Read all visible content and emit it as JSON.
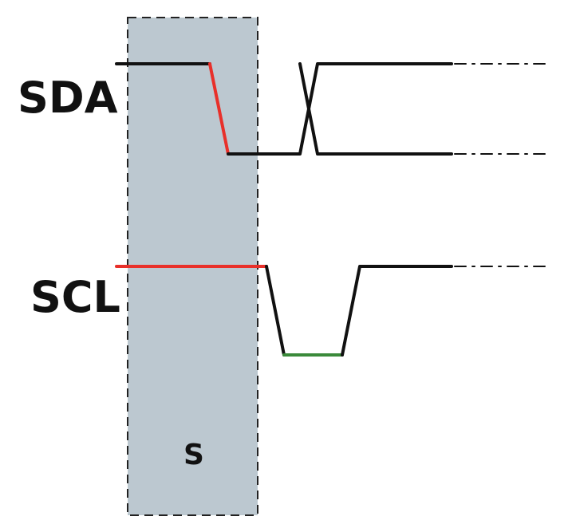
{
  "signals": [
    {
      "id": "sda",
      "label": "SDA"
    },
    {
      "id": "scl",
      "label": "SCL"
    }
  ],
  "start_condition": {
    "label": "S"
  },
  "colors": {
    "region_fill": "#bcc8d0",
    "region_border": "#222222",
    "line": "#111111",
    "start_edge": "#e8302a",
    "low_level": "#3a8a3a",
    "text": "#111111"
  }
}
